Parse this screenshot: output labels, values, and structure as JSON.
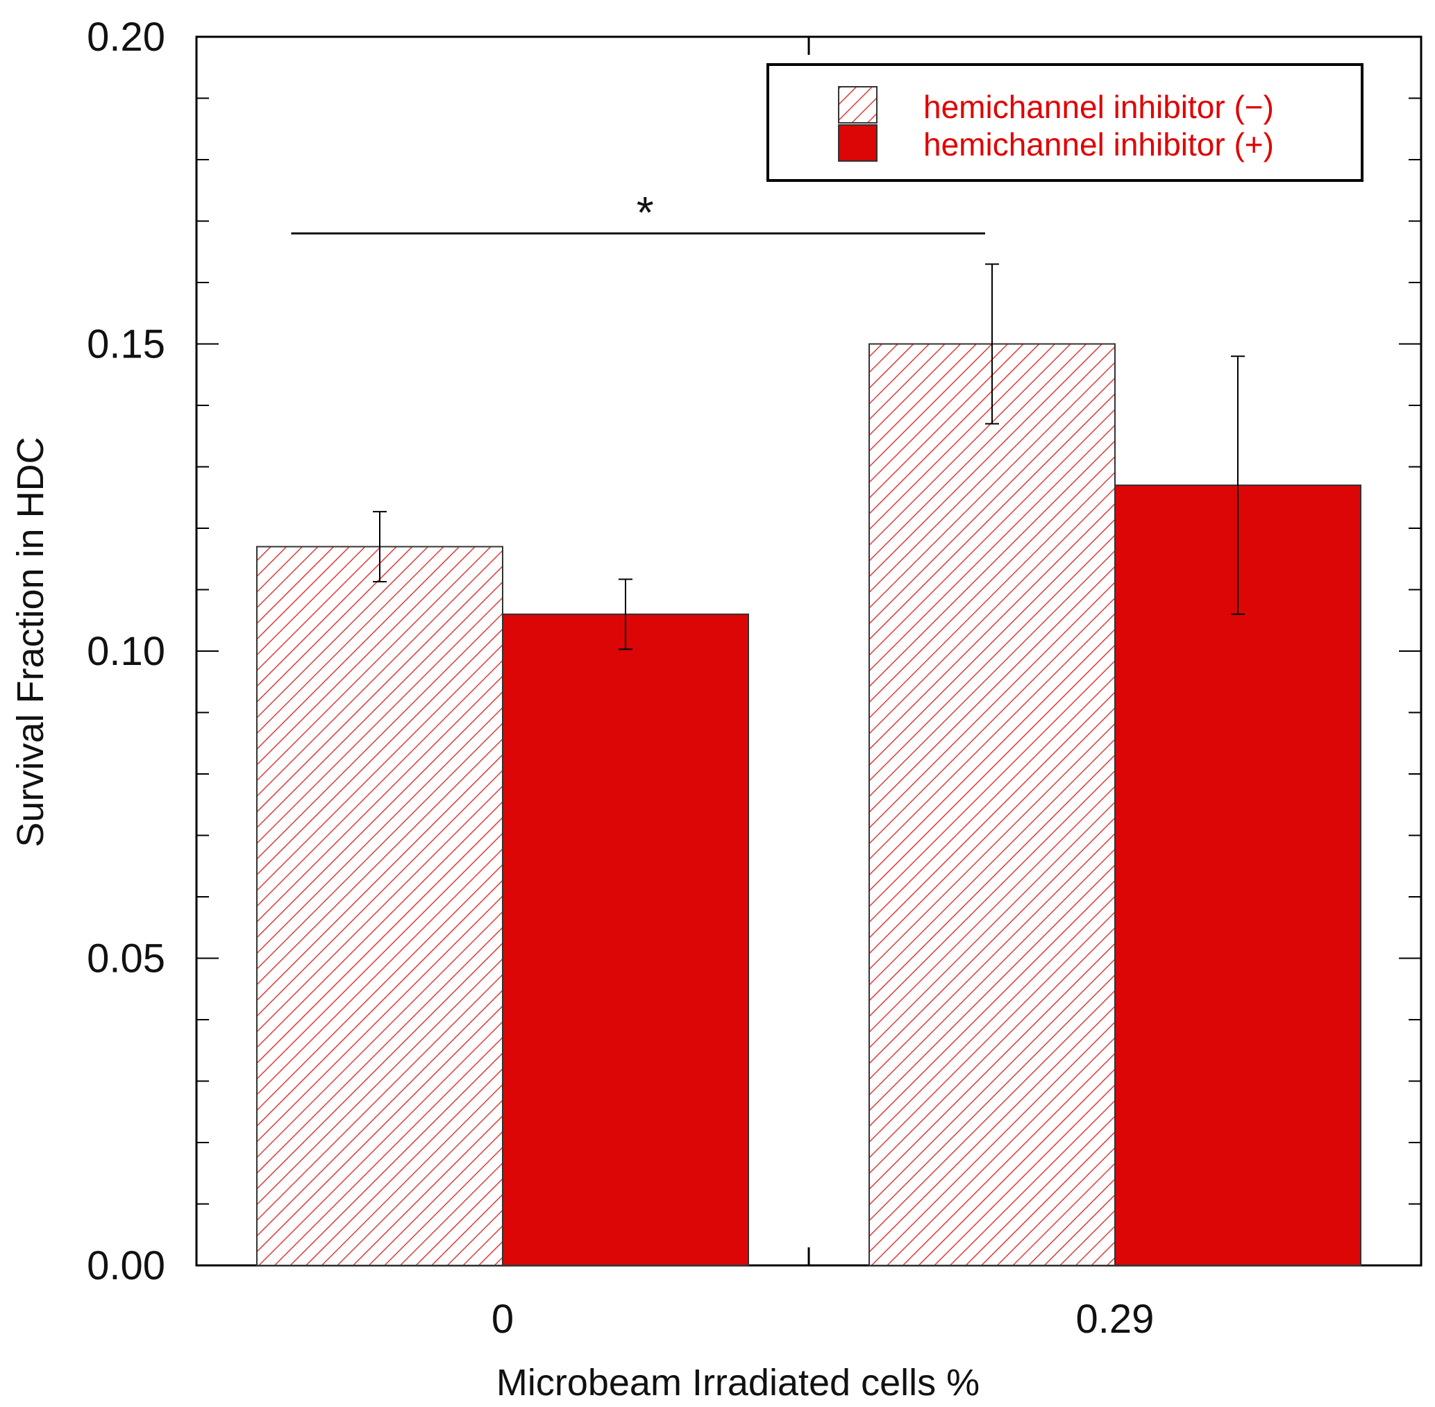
{
  "chart_data": {
    "type": "bar",
    "title": "",
    "xlabel": "Microbeam Irradiated cells %",
    "ylabel": "Survival Fraction in HDC",
    "categories": [
      "0",
      "0.29"
    ],
    "ylim": [
      0,
      0.2
    ],
    "yticks": [
      "0.00",
      "0.05",
      "0.10",
      "0.15",
      "0.20"
    ],
    "series": [
      {
        "name": "hemichannel inhibitor (−)",
        "style": "hatched",
        "color": "#e03030",
        "values": [
          0.117,
          0.15
        ],
        "errors": [
          0.0057,
          0.013
        ]
      },
      {
        "name": "hemichannel inhibitor (+)",
        "style": "solid",
        "color": "#dc0606",
        "values": [
          0.106,
          0.127
        ],
        "errors": [
          0.0057,
          0.021
        ]
      }
    ],
    "significance": {
      "label": "*",
      "from": "0",
      "to": "0.29"
    },
    "legend_position": "top-right",
    "grid": false
  }
}
